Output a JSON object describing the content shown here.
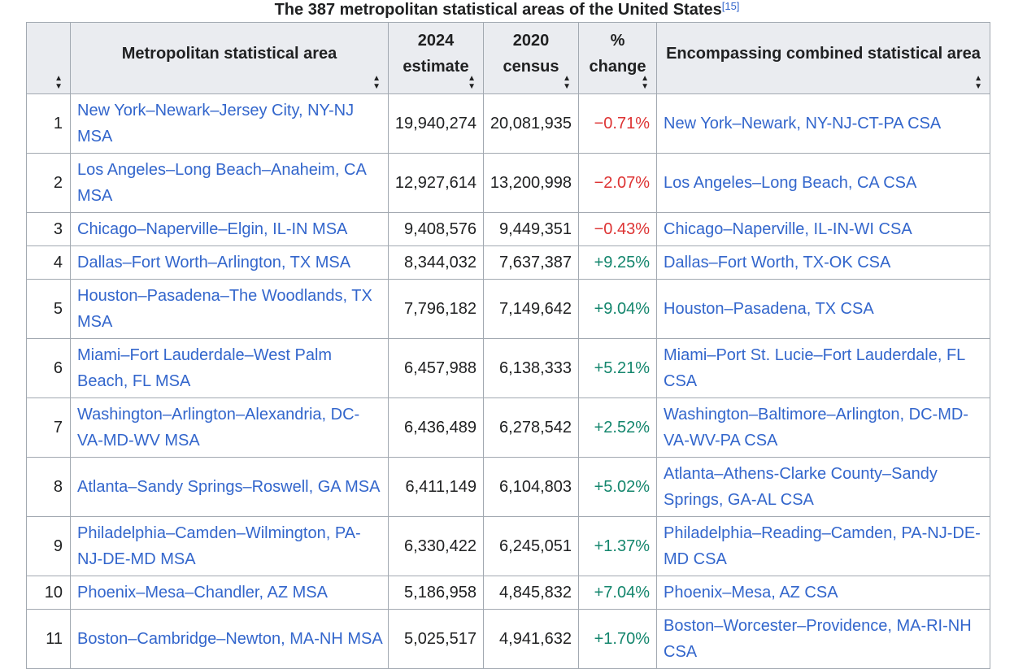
{
  "caption": {
    "title": "The 387 metropolitan statistical areas of the United States",
    "ref": "[15]"
  },
  "headers": {
    "area": "Metropolitan statistical area",
    "est_line1": "2024",
    "est_line2": "estimate",
    "census_line1": "2020",
    "census_line2": "census",
    "pct_line1": "%",
    "pct_line2": "change",
    "csa": "Encompassing combined statistical area"
  },
  "rows": [
    {
      "rank": "1",
      "area": "New York–Newark–Jersey City, NY-NJ MSA",
      "est": "19,940,274",
      "census": "20,081,935",
      "pct": "−0.71%",
      "trend": "neg",
      "csa": "New York–Newark, NY-NJ-CT-PA CSA"
    },
    {
      "rank": "2",
      "area": "Los Angeles–Long Beach–Anaheim, CA MSA",
      "est": "12,927,614",
      "census": "13,200,998",
      "pct": "−2.07%",
      "trend": "neg",
      "csa": "Los Angeles–Long Beach, CA CSA"
    },
    {
      "rank": "3",
      "area": "Chicago–Naperville–Elgin, IL-IN MSA",
      "est": "9,408,576",
      "census": "9,449,351",
      "pct": "−0.43%",
      "trend": "neg",
      "csa": "Chicago–Naperville, IL-IN-WI CSA"
    },
    {
      "rank": "4",
      "area": "Dallas–Fort Worth–Arlington, TX MSA",
      "est": "8,344,032",
      "census": "7,637,387",
      "pct": "+9.25%",
      "trend": "pos",
      "csa": "Dallas–Fort Worth, TX-OK CSA"
    },
    {
      "rank": "5",
      "area": "Houston–Pasadena–The Woodlands, TX MSA",
      "est": "7,796,182",
      "census": "7,149,642",
      "pct": "+9.04%",
      "trend": "pos",
      "csa": "Houston–Pasadena, TX CSA"
    },
    {
      "rank": "6",
      "area": "Miami–Fort Lauderdale–West Palm Beach, FL MSA",
      "est": "6,457,988",
      "census": "6,138,333",
      "pct": "+5.21%",
      "trend": "pos",
      "csa": "Miami–Port St. Lucie–Fort Lauderdale, FL CSA"
    },
    {
      "rank": "7",
      "area": "Washington–Arlington–Alexandria, DC-VA-MD-WV MSA",
      "est": "6,436,489",
      "census": "6,278,542",
      "pct": "+2.52%",
      "trend": "pos",
      "csa": "Washington–Baltimore–Arlington, DC-MD-VA-WV-PA CSA"
    },
    {
      "rank": "8",
      "area": "Atlanta–Sandy Springs–Roswell, GA MSA",
      "est": "6,411,149",
      "census": "6,104,803",
      "pct": "+5.02%",
      "trend": "pos",
      "csa": "Atlanta–Athens-Clarke County–Sandy Springs, GA-AL CSA"
    },
    {
      "rank": "9",
      "area": "Philadelphia–Camden–Wilmington, PA-NJ-DE-MD MSA",
      "est": "6,330,422",
      "census": "6,245,051",
      "pct": "+1.37%",
      "trend": "pos",
      "csa": "Philadelphia–Reading–Camden, PA-NJ-DE-MD CSA"
    },
    {
      "rank": "10",
      "area": "Phoenix–Mesa–Chandler, AZ MSA",
      "est": "5,186,958",
      "census": "4,845,832",
      "pct": "+7.04%",
      "trend": "pos",
      "csa": "Phoenix–Mesa, AZ CSA"
    },
    {
      "rank": "11",
      "area": "Boston–Cambridge–Newton, MA-NH MSA",
      "est": "5,025,517",
      "census": "4,941,632",
      "pct": "+1.70%",
      "trend": "pos",
      "csa": "Boston–Worcester–Providence, MA-RI-NH CSA"
    }
  ],
  "colors": {
    "link": "#3366cc",
    "negative": "#d33333",
    "positive": "#14866d",
    "header_bg": "#eaecf0",
    "border": "#a2a9b1"
  },
  "icons": {
    "sort": "sort-updown-icon"
  }
}
